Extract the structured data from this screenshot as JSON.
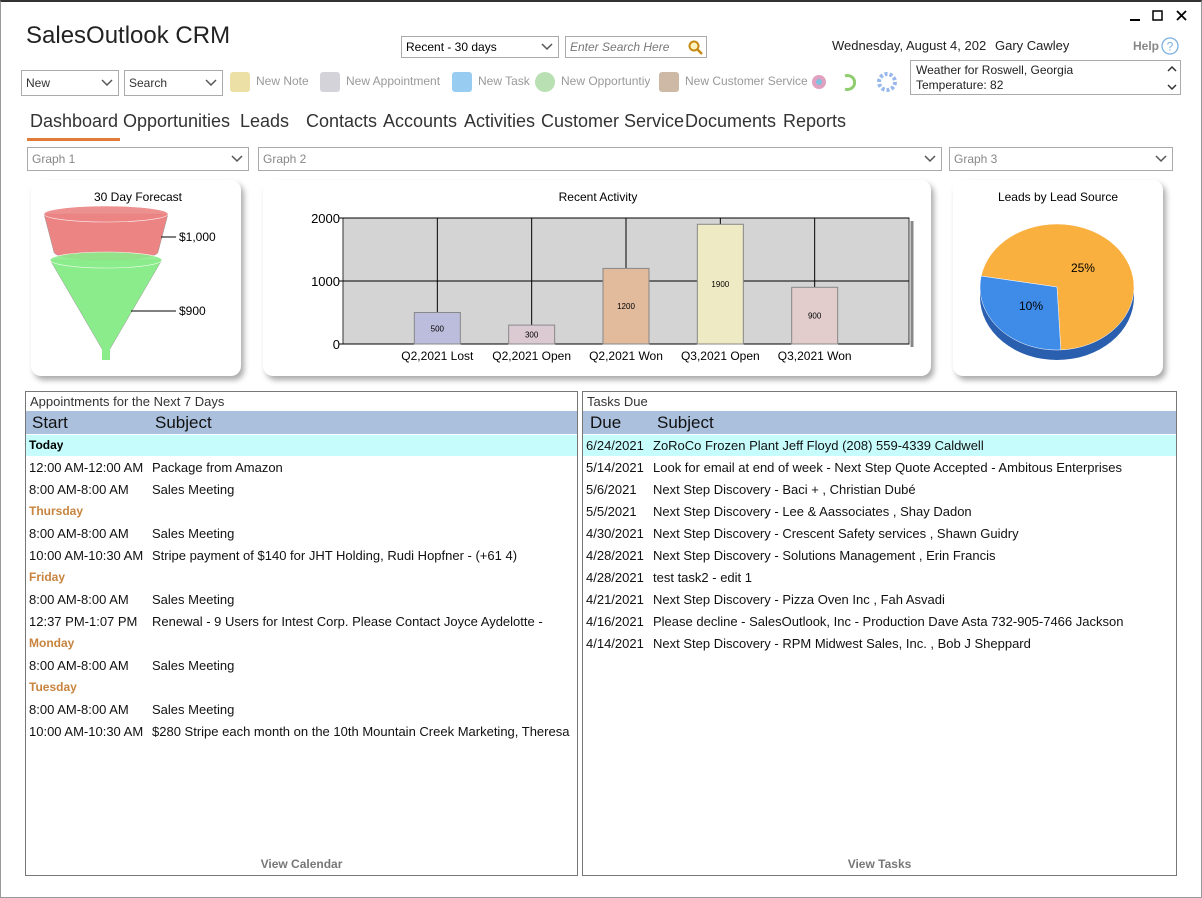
{
  "app_title": "SalesOutlook CRM",
  "toolbar": {
    "date_filter": "Recent - 30 days",
    "search_placeholder": "Enter Search Here",
    "date": "Wednesday, August 4, 202",
    "user": "Gary Cawley",
    "help": "Help",
    "new_menu": "New",
    "search_menu": "Search",
    "actions": [
      "New Note",
      "New Appointment",
      "New Task",
      "New Opportuntiy",
      "New Customer Service"
    ],
    "weather": [
      "Weather for Roswell, Georgia",
      "Temperature: 82"
    ]
  },
  "nav": [
    "Dashboard",
    "Opportunities",
    "Leads",
    "Contacts",
    "Accounts",
    "Activities",
    "Customer Service",
    "Documents",
    "Reports"
  ],
  "graph_selects": [
    "Graph 1",
    "Graph 2",
    "Graph 3"
  ],
  "chart_data": [
    {
      "type": "funnel",
      "title": "30 Day Forecast",
      "values": [
        1000,
        900
      ],
      "value_labels": [
        "$1,000",
        "$900"
      ],
      "colors": [
        "#ec8484",
        "#8aec8a"
      ]
    },
    {
      "type": "bar",
      "title": "Recent Activity",
      "categories": [
        "Q2,2021 Lost",
        "Q2,2021 Open",
        "Q2,2021 Won",
        "Q3,2021 Open",
        "Q3,2021 Won"
      ],
      "values": [
        500,
        300,
        1200,
        1900,
        900
      ],
      "colors": [
        "#bcbcdc",
        "#dccad2",
        "#e2ba9c",
        "#eeeac4",
        "#e2cccc"
      ],
      "ylim": [
        0,
        2000
      ],
      "yticks": [
        0,
        1000,
        2000
      ],
      "grid": true
    },
    {
      "type": "pie",
      "title": "Leads by Lead Source",
      "values": [
        25,
        10
      ],
      "value_labels": [
        "25%",
        "10%"
      ],
      "colors": [
        "#f9b03f",
        "#3f8be8"
      ]
    }
  ],
  "appointments": {
    "title": "Appointments for the Next 7 Days",
    "columns": [
      "Start",
      "Subject"
    ],
    "groups": [
      {
        "day": "Today",
        "rows": [
          [
            "12:00 AM-12:00 AM",
            "Package from Amazon"
          ],
          [
            "8:00 AM-8:00 AM",
            "Sales Meeting"
          ]
        ]
      },
      {
        "day": "Thursday",
        "rows": [
          [
            "8:00 AM-8:00 AM",
            "Sales Meeting"
          ],
          [
            "10:00 AM-10:30 AM",
            "Stripe payment of $140 for JHT Holding, Rudi Hopfner - (+61 4)"
          ]
        ]
      },
      {
        "day": "Friday",
        "rows": [
          [
            "8:00 AM-8:00 AM",
            "Sales Meeting"
          ],
          [
            "12:37 PM-1:07 PM",
            "Renewal - 9 Users for Intest Corp. Please Contact Joyce Aydelotte -"
          ]
        ]
      },
      {
        "day": "Monday",
        "rows": [
          [
            "8:00 AM-8:00 AM",
            "Sales Meeting"
          ]
        ]
      },
      {
        "day": "Tuesday",
        "rows": [
          [
            "8:00 AM-8:00 AM",
            "Sales Meeting"
          ],
          [
            "10:00 AM-10:30 AM",
            "$280 Stripe each month on the 10th Mountain Creek Marketing, Theresa"
          ]
        ]
      }
    ],
    "footer": "View Calendar"
  },
  "tasks": {
    "title": "Tasks Due",
    "columns": [
      "Due",
      "Subject"
    ],
    "rows": [
      [
        "6/24/2021",
        "ZoRoCo Frozen Plant Jeff Floyd (208) 559-4339 Caldwell"
      ],
      [
        "5/14/2021",
        "Look for email at end of week - Next Step Quote Accepted - Ambitous Enterprises"
      ],
      [
        "5/6/2021",
        "Next Step Discovery - Baci + , Christian Dubé"
      ],
      [
        "5/5/2021",
        "Next Step Discovery - Lee & Aassociates , Shay Dadon"
      ],
      [
        "4/30/2021",
        "Next Step Discovery - Crescent Safety services , Shawn Guidry"
      ],
      [
        "4/28/2021",
        "Next Step Discovery - Solutions Management , Erin Francis"
      ],
      [
        "4/28/2021",
        "test task2 - edit 1"
      ],
      [
        "4/21/2021",
        "Next Step Discovery - Pizza Oven Inc , Fah Asvadi"
      ],
      [
        "4/16/2021",
        "Please decline - SalesOutlook, Inc - Production Dave Asta 732-905-7466 Jackson"
      ],
      [
        "4/14/2021",
        "Next Step Discovery - RPM Midwest Sales, Inc. , Bob J Sheppard"
      ]
    ],
    "footer": "View Tasks"
  }
}
